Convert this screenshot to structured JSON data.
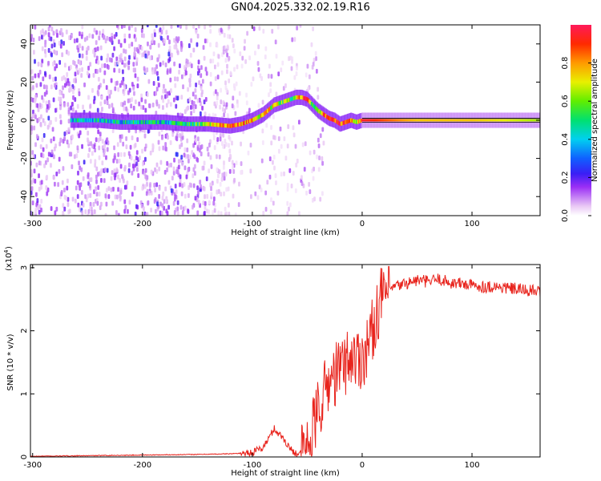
{
  "title": "GN04.2025.332.02.19.R16",
  "chart_data": [
    {
      "type": "heatmap",
      "xlabel": "Height of straight line (km)",
      "ylabel": "Frequency (Hz)",
      "xlim": [
        -302,
        162
      ],
      "ylim": [
        -50,
        50
      ],
      "xticks": [
        -300,
        -200,
        -100,
        0,
        100
      ],
      "yticks": [
        -40,
        -20,
        0,
        20,
        40
      ],
      "colorbar": {
        "label": "Normalized spectral amplitude",
        "range": [
          0.0,
          1.0
        ],
        "ticks": [
          0.0,
          0.2,
          0.4,
          0.6,
          0.8
        ]
      },
      "ridge_frequency": {
        "x": [
          -260,
          -240,
          -220,
          -200,
          -180,
          -160,
          -140,
          -120,
          -110,
          -100,
          -90,
          -80,
          -70,
          -60,
          -55,
          -50,
          -45,
          -40,
          -35,
          -30,
          -25,
          -20,
          -15,
          -10,
          -5,
          0,
          50,
          100,
          160
        ],
        "y": [
          0,
          0,
          -1,
          -1,
          -1,
          -2,
          -2,
          -3,
          -2,
          0,
          3,
          8,
          10,
          12,
          12,
          11,
          8,
          5,
          3,
          1,
          0,
          -2,
          -1,
          0,
          -1,
          0,
          0,
          0,
          0
        ],
        "amplitude": [
          0.4,
          0.45,
          0.4,
          0.45,
          0.45,
          0.45,
          0.7,
          0.9,
          0.85,
          0.8,
          0.7,
          0.65,
          0.6,
          0.55,
          0.85,
          0.9,
          0.6,
          0.55,
          0.9,
          0.85,
          0.9,
          0.9,
          0.8,
          0.8,
          0.5,
          0.95,
          0.75,
          0.75,
          0.65
        ]
      }
    },
    {
      "type": "line",
      "xlabel": "Height of straight line (km)",
      "ylabel": "SNR (10 * v/v)",
      "multiplier": "(x10^4)",
      "xlim": [
        -302,
        162
      ],
      "ylim": [
        0,
        3.05
      ],
      "xticks": [
        -300,
        -200,
        -100,
        0,
        100
      ],
      "yticks": [
        0,
        1,
        2,
        3
      ],
      "series": [
        {
          "color": "#e8231c",
          "x": [
            -302,
            -250,
            -200,
            -150,
            -120,
            -100,
            -90,
            -85,
            -80,
            -75,
            -72,
            -70,
            -65,
            -60,
            -55,
            -50,
            -45,
            -40,
            -35,
            -30,
            -25,
            -20,
            -15,
            -10,
            -5,
            0,
            5,
            10,
            15,
            20,
            30,
            40,
            50,
            60,
            70,
            80,
            90,
            100,
            110,
            120,
            130,
            140,
            150,
            162
          ],
          "y": [
            0.01,
            0.02,
            0.03,
            0.04,
            0.05,
            0.07,
            0.15,
            0.3,
            0.45,
            0.35,
            0.3,
            0.25,
            0.12,
            0.06,
            0.05,
            0.1,
            0.4,
            0.75,
            1.0,
            1.2,
            1.3,
            1.4,
            1.5,
            1.6,
            1.55,
            1.6,
            1.75,
            2.05,
            2.4,
            2.6,
            2.7,
            2.75,
            2.8,
            2.78,
            2.82,
            2.76,
            2.75,
            2.72,
            2.7,
            2.7,
            2.68,
            2.66,
            2.64,
            2.62
          ]
        }
      ]
    }
  ]
}
